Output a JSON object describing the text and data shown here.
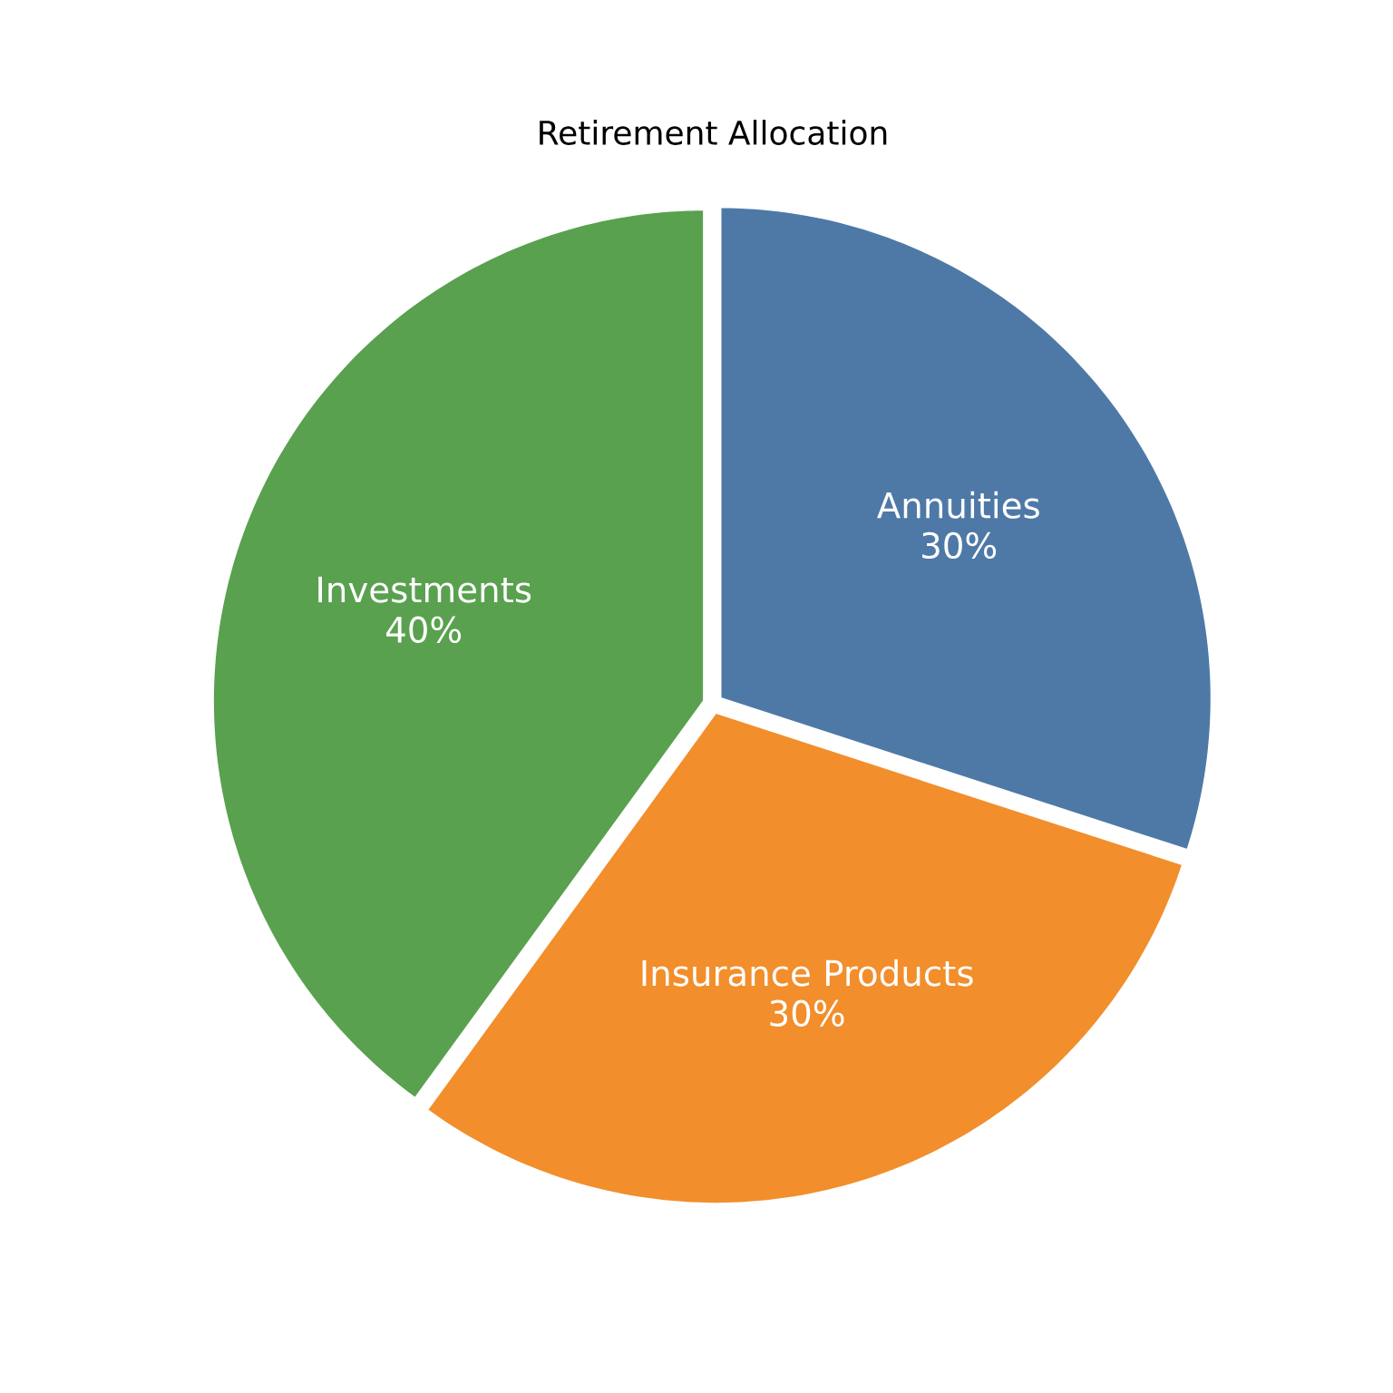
{
  "chart_data": {
    "type": "pie",
    "title": "Retirement Allocation",
    "categories": [
      "Annuities",
      "Insurance Products",
      "Investments"
    ],
    "values": [
      30,
      30,
      40
    ],
    "colors": [
      "#4e79a7",
      "#f28e2b",
      "#59a14f"
    ],
    "value_labels": [
      "30%",
      "30%",
      "40%"
    ]
  }
}
